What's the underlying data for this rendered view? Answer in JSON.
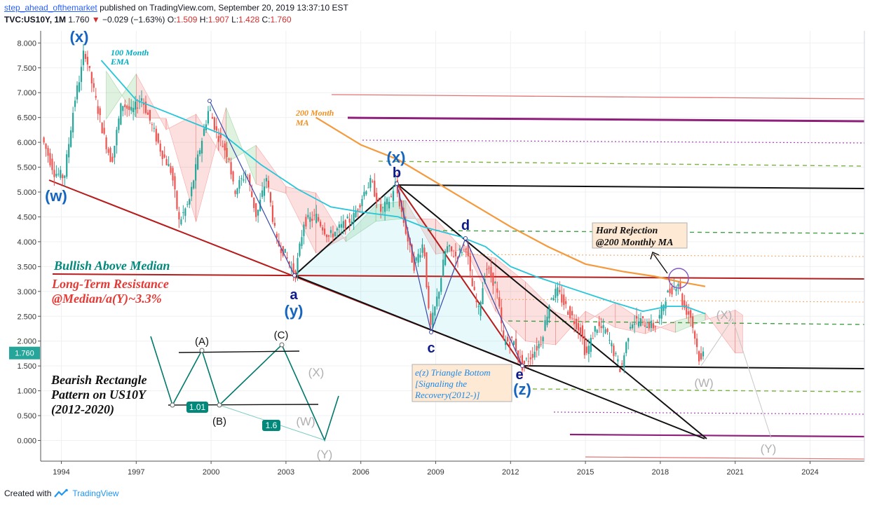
{
  "header": {
    "author": "step_ahead_ofthemarket",
    "published": "published on TradingView.com, September 20, 2019 13:37:10 EST",
    "symbol": "TVC:US10Y, 1M",
    "last": "1.760",
    "change": "−0.029 (−1.63%)",
    "o_label": "O:",
    "o": "1.509",
    "h_label": "H:",
    "h": "1.907",
    "l_label": "L:",
    "l": "1.428",
    "c_label": "C:",
    "c": "1.760"
  },
  "footer": {
    "created": "Created with",
    "brand": "TradingView"
  },
  "colors": {
    "up": "#26a69a",
    "down": "#ef5350",
    "ema": "#26c6da",
    "ma": "#f59a3c",
    "resistance": "#b71c1c",
    "wave": "#1565c0",
    "purple": "#8e1f7a",
    "green_dash": "#4caf50"
  },
  "chart_data": {
    "type": "line",
    "title": "TVC:US10Y, 1M",
    "ylim": [
      -0.4,
      8.2
    ],
    "y_ticks": [
      "8.000",
      "7.500",
      "7.000",
      "6.500",
      "6.000",
      "5.500",
      "5.000",
      "4.500",
      "4.000",
      "3.500",
      "3.000",
      "2.500",
      "2.000",
      "1.500",
      "1.000",
      "0.500",
      "0.000"
    ],
    "x_range": [
      1993.3,
      2026.5
    ],
    "x_ticks": [
      {
        "year": 1994,
        "label": "1994"
      },
      {
        "year": 1997,
        "label": "1997"
      },
      {
        "year": 2000,
        "label": "2000"
      },
      {
        "year": 2003,
        "label": "2003"
      },
      {
        "year": 2006,
        "label": "2006"
      },
      {
        "year": 2009,
        "label": "2009"
      },
      {
        "year": 2012,
        "label": "2012"
      },
      {
        "year": 2015,
        "label": "2015"
      },
      {
        "year": 2018,
        "label": "2018"
      },
      {
        "year": 2021,
        "label": "2021"
      },
      {
        "year": 2024,
        "label": "2024"
      }
    ],
    "last_price_label": "1.760",
    "price_path": [
      [
        1993.3,
        6.1
      ],
      [
        1993.8,
        5.4
      ],
      [
        1994.2,
        5.3
      ],
      [
        1994.6,
        6.8
      ],
      [
        1994.9,
        7.5
      ],
      [
        1995.0,
        7.9
      ],
      [
        1995.3,
        7.2
      ],
      [
        1995.8,
        6.1
      ],
      [
        1996.1,
        5.6
      ],
      [
        1996.5,
        6.8
      ],
      [
        1996.9,
        6.6
      ],
      [
        1997.3,
        6.9
      ],
      [
        1997.8,
        6.2
      ],
      [
        1998.1,
        5.8
      ],
      [
        1998.5,
        5.4
      ],
      [
        1998.8,
        4.4
      ],
      [
        1999.2,
        4.8
      ],
      [
        1999.6,
        5.8
      ],
      [
        2000.0,
        6.7
      ],
      [
        2000.3,
        6.2
      ],
      [
        2000.8,
        5.7
      ],
      [
        2001.0,
        5.0
      ],
      [
        2001.5,
        5.4
      ],
      [
        2001.9,
        4.5
      ],
      [
        2002.3,
        5.3
      ],
      [
        2002.7,
        4.0
      ],
      [
        2003.0,
        3.8
      ],
      [
        2003.45,
        3.3
      ],
      [
        2003.8,
        4.4
      ],
      [
        2004.3,
        4.5
      ],
      [
        2004.8,
        4.1
      ],
      [
        2005.3,
        4.3
      ],
      [
        2005.8,
        4.5
      ],
      [
        2006.3,
        5.1
      ],
      [
        2006.5,
        5.2
      ],
      [
        2006.9,
        4.6
      ],
      [
        2007.3,
        4.9
      ],
      [
        2007.45,
        5.2
      ],
      [
        2007.8,
        4.4
      ],
      [
        2008.2,
        3.5
      ],
      [
        2008.6,
        4.0
      ],
      [
        2008.85,
        2.2
      ],
      [
        2009.2,
        3.0
      ],
      [
        2009.5,
        3.9
      ],
      [
        2009.9,
        3.7
      ],
      [
        2010.3,
        3.95
      ],
      [
        2010.5,
        3.2
      ],
      [
        2010.8,
        2.6
      ],
      [
        2011.1,
        3.5
      ],
      [
        2011.5,
        3.1
      ],
      [
        2011.8,
        2.0
      ],
      [
        2012.2,
        2.0
      ],
      [
        2012.55,
        1.5
      ],
      [
        2012.9,
        1.7
      ],
      [
        2013.3,
        2.0
      ],
      [
        2013.7,
        2.9
      ],
      [
        2013.95,
        3.0
      ],
      [
        2014.4,
        2.6
      ],
      [
        2014.9,
        2.2
      ],
      [
        2015.1,
        1.7
      ],
      [
        2015.5,
        2.3
      ],
      [
        2015.9,
        2.2
      ],
      [
        2016.2,
        1.8
      ],
      [
        2016.5,
        1.4
      ],
      [
        2016.9,
        2.4
      ],
      [
        2017.3,
        2.4
      ],
      [
        2017.8,
        2.3
      ],
      [
        2018.0,
        2.4
      ],
      [
        2018.3,
        2.9
      ],
      [
        2018.8,
        3.2
      ],
      [
        2019.0,
        2.7
      ],
      [
        2019.3,
        2.5
      ],
      [
        2019.5,
        2.0
      ],
      [
        2019.7,
        1.5
      ],
      [
        2019.75,
        1.76
      ]
    ],
    "series": [
      {
        "name": "100 Month EMA",
        "points": [
          [
            1995.6,
            7.65
          ],
          [
            1997.0,
            6.85
          ],
          [
            1998.5,
            6.55
          ],
          [
            2000.5,
            6.15
          ],
          [
            2002.0,
            5.55
          ],
          [
            2003.5,
            5.05
          ],
          [
            2004.8,
            4.7
          ],
          [
            2006.0,
            4.6
          ],
          [
            2007.5,
            4.5
          ],
          [
            2008.5,
            4.3
          ],
          [
            2010.0,
            4.1
          ],
          [
            2011.0,
            3.9
          ],
          [
            2012.0,
            3.5
          ],
          [
            2013.0,
            3.3
          ],
          [
            2014.5,
            3.05
          ],
          [
            2016.0,
            2.8
          ],
          [
            2017.3,
            2.6
          ],
          [
            2018.3,
            2.7
          ],
          [
            2019.0,
            2.7
          ],
          [
            2019.8,
            2.55
          ]
        ]
      },
      {
        "name": "200 Month MA",
        "points": [
          [
            2004.2,
            6.5
          ],
          [
            2006.0,
            5.95
          ],
          [
            2007.5,
            5.65
          ],
          [
            2009.0,
            5.2
          ],
          [
            2010.5,
            4.75
          ],
          [
            2012.0,
            4.3
          ],
          [
            2013.5,
            3.9
          ],
          [
            2015.0,
            3.55
          ],
          [
            2016.5,
            3.4
          ],
          [
            2017.8,
            3.3
          ],
          [
            2018.7,
            3.2
          ],
          [
            2019.8,
            3.1
          ]
        ]
      }
    ],
    "labels": {
      "ema": [
        "100 Month",
        "EMA"
      ],
      "ma": [
        "200 Month",
        "MA"
      ],
      "bullish": "Bullish Above Median",
      "resistance": [
        "Long-Term Resistance",
        "@Median/a(Y)~3.3%"
      ],
      "rejection": [
        "Hard Rejection",
        "@200 Monthly MA"
      ],
      "triangle": [
        "e(z) Triangle Bottom",
        "[Signaling the",
        "Recovery(2012-)]"
      ],
      "rectangle": [
        "Bearish Rectangle",
        "Pattern on US10Y",
        "(2012-2020)"
      ],
      "wave_top_x": "(x)",
      "wave_w": "(w)",
      "wave_x2": "(x)",
      "wave_b": "b",
      "wave_d": "d",
      "wave_a": "a",
      "wave_y": "(y)",
      "wave_c": "c",
      "wave_e": "e",
      "wave_z": "(z)",
      "grey_X": "(X)",
      "grey_W": "(W)",
      "grey_Y": "(Y)",
      "inset_A": "(A)",
      "inset_B": "(B)",
      "inset_C": "(C)",
      "inset_X": "(X)",
      "inset_W": "(W)",
      "inset_Y": "(Y)",
      "ratio1": "1.01",
      "ratio2": "1.6"
    }
  }
}
